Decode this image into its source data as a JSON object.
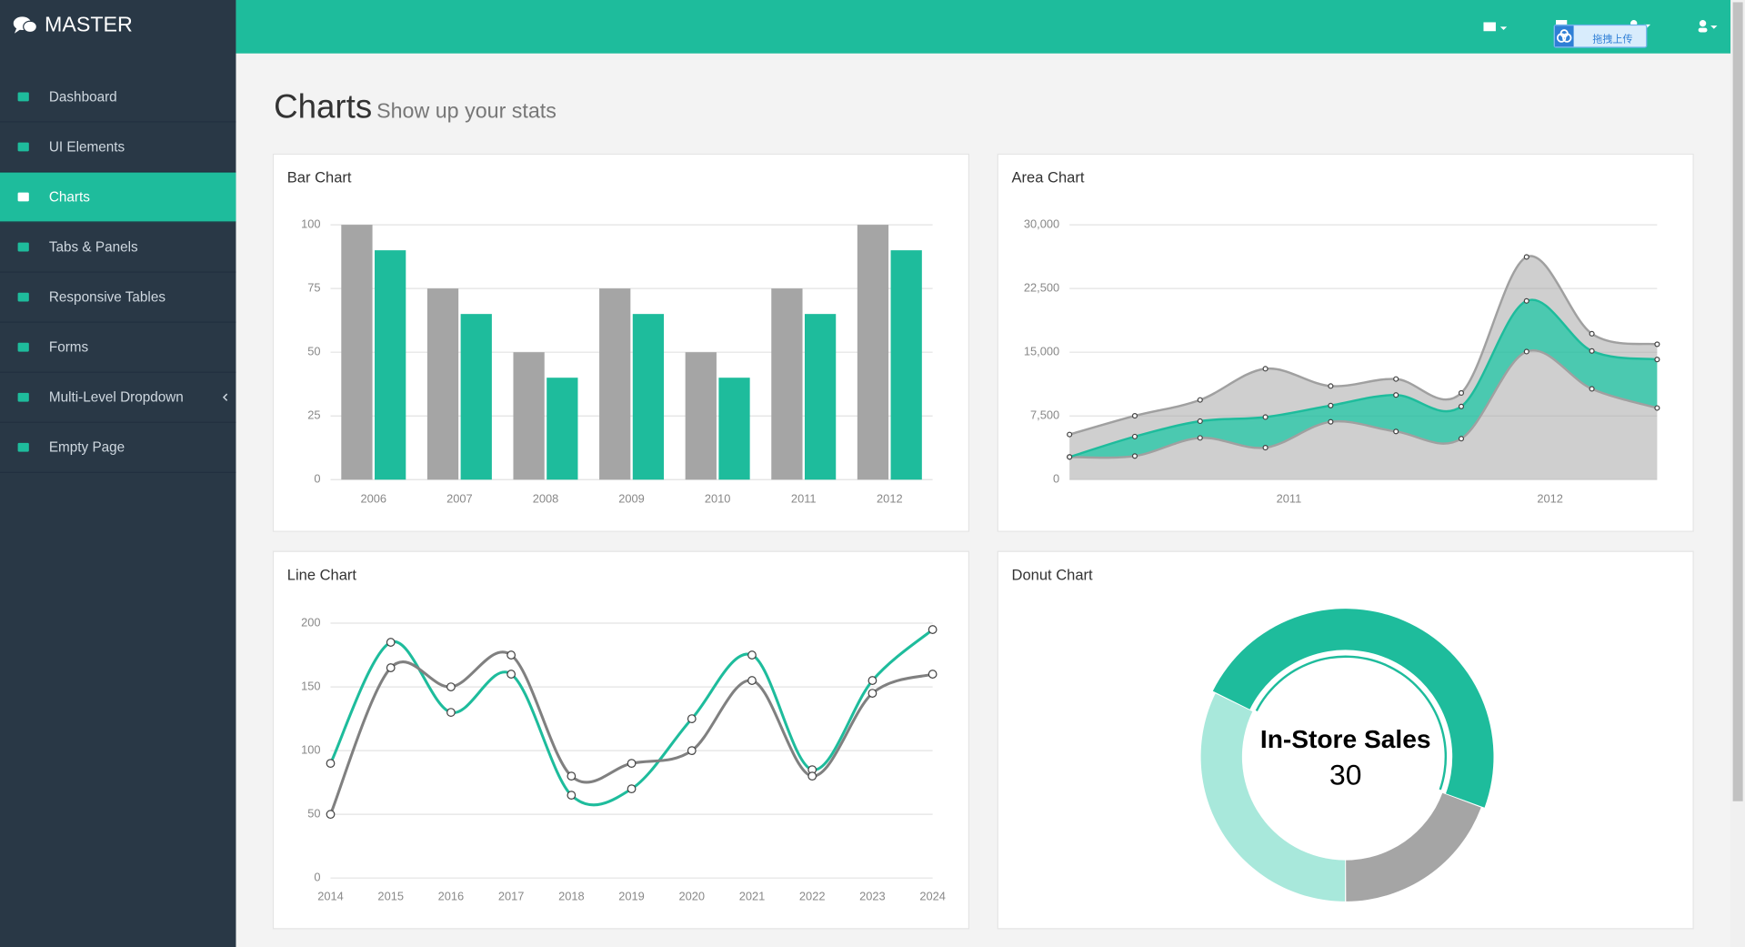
{
  "sidebar": {
    "brand": "MASTER",
    "menu": [
      {
        "label": "Dashboard"
      },
      {
        "label": "UI Elements"
      },
      {
        "label": "Charts",
        "active": true
      },
      {
        "label": "Tabs & Panels"
      },
      {
        "label": "Responsive Tables"
      },
      {
        "label": "Forms"
      },
      {
        "label": "Multi-Level Dropdown",
        "submenu": true
      },
      {
        "label": "Empty Page"
      }
    ]
  },
  "topbar": {
    "upload_button": "拖拽上传"
  },
  "page_header": {
    "title": "Charts",
    "subtitle": "Show up your stats"
  },
  "chart_data": [
    {
      "type": "bar",
      "title": "Bar Chart",
      "categories": [
        "2006",
        "2007",
        "2008",
        "2009",
        "2010",
        "2011",
        "2012"
      ],
      "series": [
        {
          "color": "#a5a5a5",
          "values": [
            100,
            75,
            50,
            75,
            50,
            75,
            100
          ]
        },
        {
          "color": "#1ebc9c",
          "values": [
            90,
            65,
            40,
            65,
            40,
            65,
            90
          ]
        }
      ],
      "ylim": [
        0,
        100
      ],
      "yticks": [
        0,
        25,
        50,
        75,
        100
      ],
      "grid": true
    },
    {
      "type": "area",
      "title": "Area Chart",
      "stacked": true,
      "x": [
        2010.16,
        2010.41,
        2010.66,
        2010.91,
        2011.16,
        2011.41,
        2011.66,
        2011.91,
        2012.16,
        2012.41
      ],
      "xlim": [
        2010.16,
        2012.41
      ],
      "xticks": [
        2011,
        2012
      ],
      "series": [
        {
          "color": "#a0a0a0",
          "values": [
            2666,
            2778,
            4912,
            3767,
            6810,
            5670,
            4820,
            15073,
            10687,
            8432
          ]
        },
        {
          "color": "#1ebc9c",
          "values": [
            0,
            2294,
            1969,
            3597,
            1914,
            4293,
            3795,
            5967,
            4460,
            5713
          ]
        },
        {
          "color": "#a0a0a0",
          "values": [
            2647,
            2441,
            2501,
            5689,
            2293,
            1881,
            1588,
            5175,
            2028,
            1791
          ]
        }
      ],
      "ylim": [
        0,
        30000
      ],
      "yticks": [
        0,
        {
          "value": 7500,
          "label": "7,500"
        },
        {
          "value": 15000,
          "label": "15,000"
        },
        {
          "value": 22500,
          "label": "22,500"
        },
        {
          "value": 30000,
          "label": "30,000"
        }
      ],
      "grid": true
    },
    {
      "type": "line",
      "title": "Line Chart",
      "x": [
        2014,
        2015,
        2016,
        2017,
        2018,
        2019,
        2020,
        2021,
        2022,
        2023,
        2024
      ],
      "xlim": [
        2014,
        2024
      ],
      "xticks": [
        2014,
        2015,
        2016,
        2017,
        2018,
        2019,
        2020,
        2021,
        2022,
        2023,
        2024
      ],
      "series": [
        {
          "color": "#1ebc9c",
          "values": [
            90,
            185,
            130,
            160,
            65,
            70,
            125,
            175,
            85,
            155,
            195
          ]
        },
        {
          "color": "#808080",
          "values": [
            50,
            165,
            150,
            175,
            80,
            90,
            100,
            155,
            80,
            145,
            160
          ]
        }
      ],
      "ylim": [
        0,
        200
      ],
      "yticks": [
        0,
        50,
        100,
        150,
        200
      ],
      "grid": true
    },
    {
      "type": "donut",
      "title": "Donut Chart",
      "values": [
        20,
        30,
        12
      ],
      "colors": [
        "#a8e8db",
        "#1ebc9c",
        "#a5a5a5"
      ],
      "highlight": 1,
      "highlight_label": "In-Store Sales"
    }
  ]
}
